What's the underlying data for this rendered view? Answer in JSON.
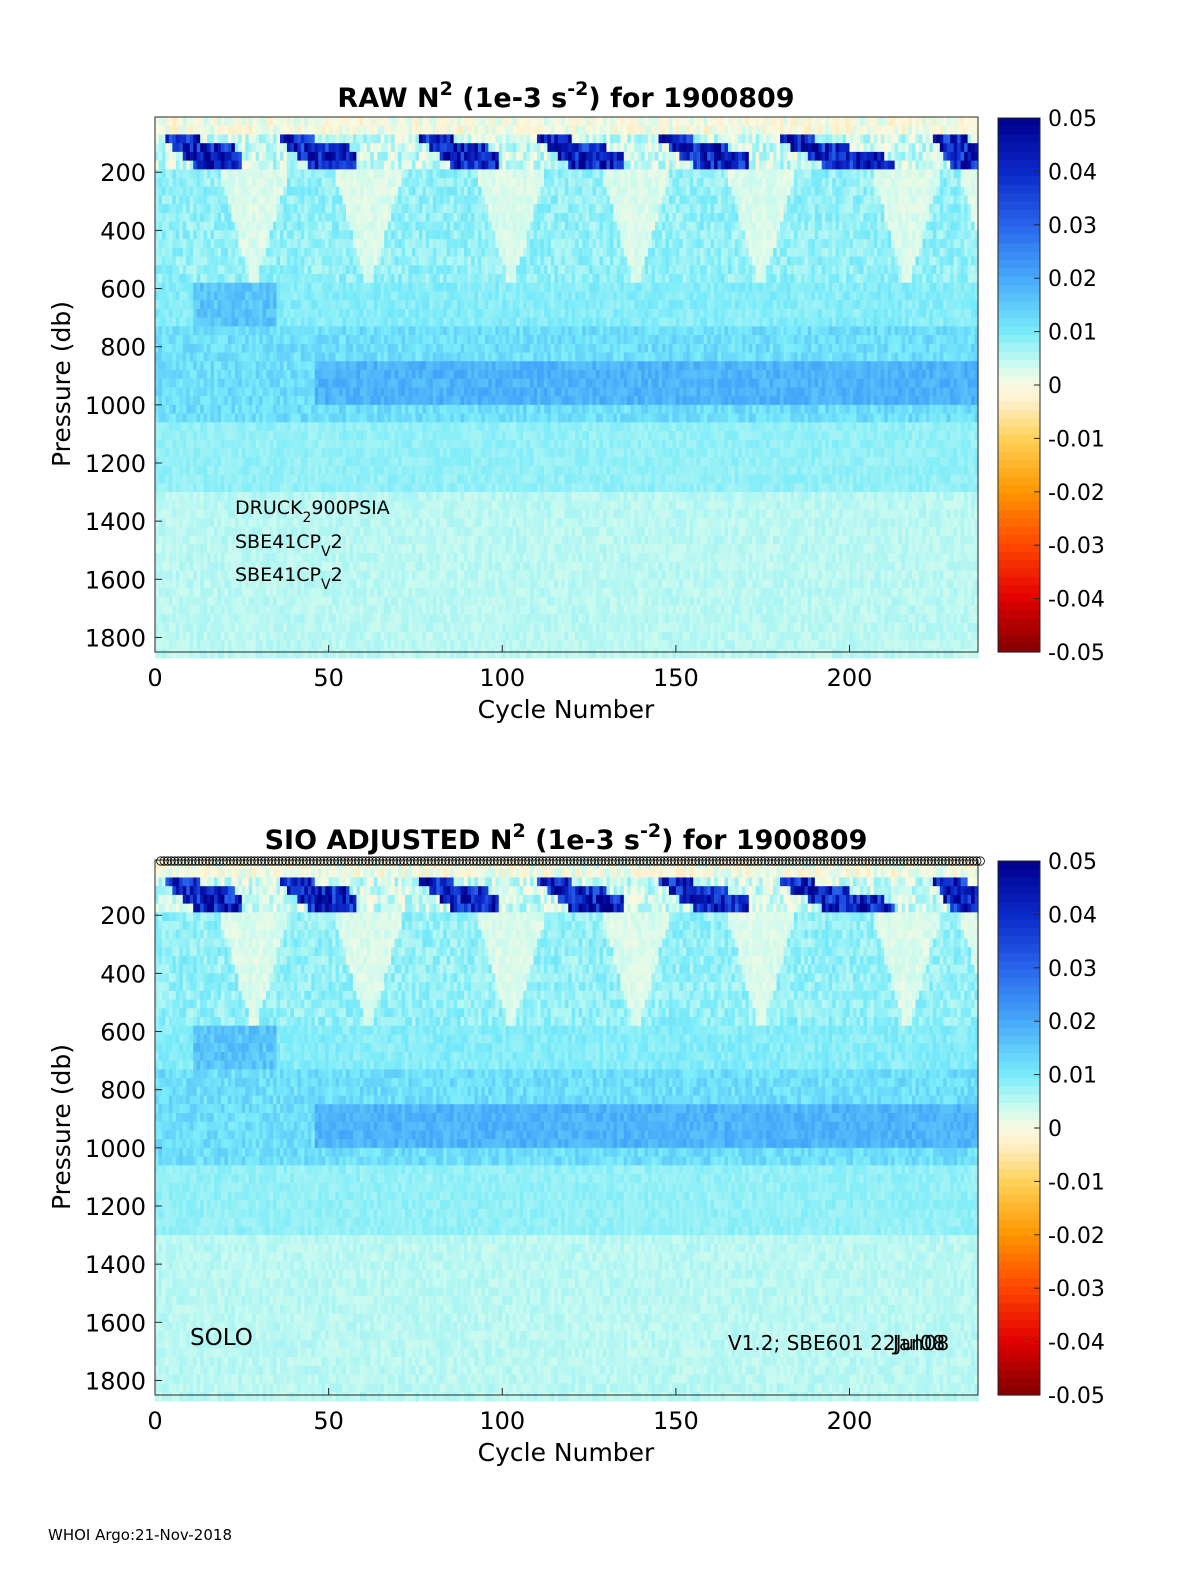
{
  "figure": {
    "footer": "WHOI Argo:21-Nov-2018"
  },
  "chart_data": [
    {
      "type": "heatmap",
      "title": {
        "prefix": "RAW N",
        "sup1": "2",
        "mid": " (1e-3 s",
        "sup2": "-2",
        "suffix": ") for 1900809"
      },
      "xlabel": "Cycle Number",
      "ylabel": "Pressure (db)",
      "xlim": [
        0,
        237
      ],
      "ylim": [
        1850,
        10
      ],
      "x_ticks": [
        "0",
        "50",
        "100",
        "150",
        "200"
      ],
      "y_ticks": [
        "200",
        "400",
        "600",
        "800",
        "1000",
        "1200",
        "1400",
        "1600",
        "1800"
      ],
      "colorbar": {
        "clim": [
          -0.05,
          0.05
        ],
        "ticks": [
          "0.05",
          "0.04",
          "0.03",
          "0.02",
          "0.01",
          "0",
          "-0.01",
          "-0.02",
          "-0.03",
          "-0.04",
          "-0.05"
        ],
        "colormap": "jet-with-white-center"
      },
      "annotations": [
        {
          "base": "DRUCK",
          "sub": "2",
          "rest": "900PSIA"
        },
        {
          "base": "SBE41CP",
          "sub": "V",
          "rest": "2"
        },
        {
          "base": "SBE41CP",
          "sub": "V",
          "rest": "2"
        }
      ],
      "description": "Stratification field: strong N2 (0.03-0.05) in top ~150 db with recurring plumes near cycles 5-20, 40-55, 78-95, 112-132, 147-165, 182-205, 225-237; near-zero wedges at 600 db below; 0.01-0.02 band 750-1050 db; ~0.005 deeper"
    },
    {
      "type": "heatmap",
      "title": {
        "prefix": "SIO  ADJUSTED N",
        "sup1": "2",
        "mid": " (1e-3 s",
        "sup2": "-2",
        "suffix": ") for 1900809"
      },
      "xlabel": "Cycle Number",
      "ylabel": "Pressure (db)",
      "xlim": [
        0,
        237
      ],
      "ylim": [
        1850,
        10
      ],
      "x_ticks": [
        "0",
        "50",
        "100",
        "150",
        "200"
      ],
      "y_ticks": [
        "200",
        "400",
        "600",
        "800",
        "1000",
        "1200",
        "1400",
        "1600",
        "1800"
      ],
      "colorbar": {
        "clim": [
          -0.05,
          0.05
        ],
        "ticks": [
          "0.05",
          "0.04",
          "0.03",
          "0.02",
          "0.01",
          "0",
          "-0.01",
          "-0.02",
          "-0.03",
          "-0.04",
          "-0.05"
        ],
        "colormap": "jet-with-white-center"
      },
      "qc_markers": {
        "symbol": "o",
        "cycle_range": [
          1,
          237
        ],
        "row": "top"
      },
      "annotations_left": "SOLO",
      "annotations_right": {
        "text1": "V1.2; SBE601 22Jul08",
        "text2": "Jan08"
      }
    }
  ]
}
